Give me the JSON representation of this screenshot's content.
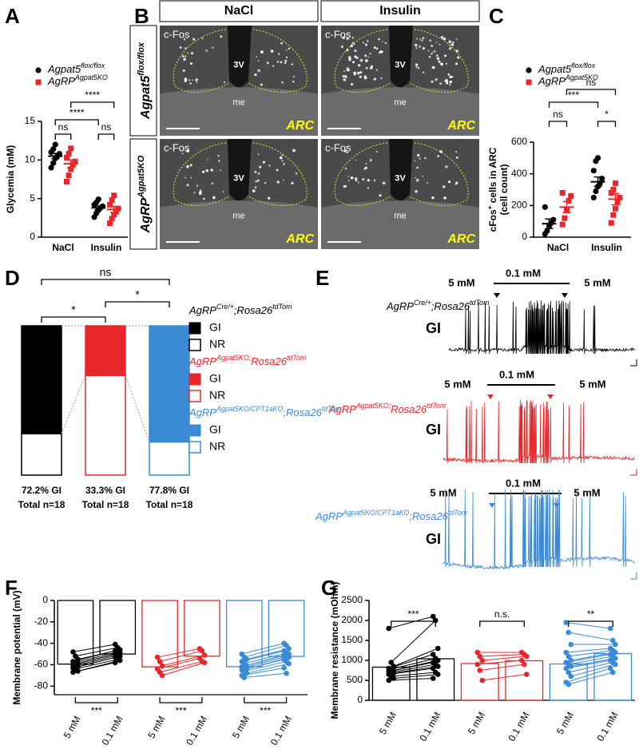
{
  "micrographs": {
    "panel": "B",
    "columns": [
      "NaCl",
      "Insulin"
    ],
    "rows": [
      [
        {
          "t": "Agpat5"
        },
        {
          "sup": "flox/flox"
        }
      ],
      [
        {
          "t": "AgRP"
        },
        {
          "sup": "Agpat5KO"
        }
      ]
    ],
    "images": [
      {
        "stain": "c-Fos",
        "ventricle": "3V",
        "eminence": "me",
        "region": "ARC"
      },
      {
        "stain": "c-Fos",
        "ventricle": "3V",
        "eminence": "me",
        "region": "ARC"
      },
      {
        "stain": "c-Fos",
        "ventricle": "3V",
        "eminence": "me",
        "region": "ARC"
      },
      {
        "stain": "c-Fos",
        "ventricle": "3V",
        "eminence": "me",
        "region": "ARC"
      }
    ]
  },
  "electrophysiology": {
    "panel": "E",
    "traces": [
      {
        "genotype": [
          {
            "t": "AgRP"
          },
          {
            "sup": "Cre/+"
          },
          {
            "t": ";Rosa26"
          },
          {
            "sup": "tdTom"
          }
        ],
        "conditions": [
          "5 mM",
          "0.1 mM",
          "5 mM"
        ],
        "response": "GI",
        "color": "#000000"
      },
      {
        "genotype": [
          {
            "t": "AgRP"
          },
          {
            "sup": "Agpat5KO;"
          },
          {
            "t": "Rosa26"
          },
          {
            "sup": "tdTom"
          }
        ],
        "conditions": [
          "5 mM",
          "0.1 mM",
          "5 mM"
        ],
        "response": "GI",
        "color": "#e8272a"
      },
      {
        "genotype": [
          {
            "t": "AgRP"
          },
          {
            "sup": "Agpat5KO/CPT1aKO"
          },
          {
            "t": ";Rosa26"
          },
          {
            "sup": "tdTom"
          }
        ],
        "conditions": [
          "5 mM",
          "0.1 mM",
          "5 mM"
        ],
        "response": "GI",
        "color": "#3a8ad6"
      }
    ]
  },
  "chart_data": [
    {
      "panel": "A",
      "type": "dot",
      "ylabel": "Glycemia (mM)",
      "categories": [
        "NaCl",
        "Insulin"
      ],
      "ylim": [
        0,
        15
      ],
      "yticks": [
        0,
        5,
        10,
        15
      ],
      "series": [
        {
          "name": [
            {
              "t": "Agpat5"
            },
            {
              "sup": "flox/flox"
            }
          ],
          "color": "#000000",
          "marker": "circle",
          "values": [
            10.5,
            3.8
          ],
          "errors": [
            0.35,
            0.25
          ],
          "points": [
            [
              9.0,
              9.6,
              10.2,
              10.5,
              10.8,
              11.0,
              11.4,
              12.0
            ],
            [
              2.6,
              3.1,
              3.5,
              3.8,
              4.0,
              4.2,
              4.5,
              4.9
            ]
          ]
        },
        {
          "name": [
            {
              "t": "AgRP"
            },
            {
              "sup": "Agpat5KO"
            }
          ],
          "color": "#e8272a",
          "marker": "square",
          "values": [
            9.5,
            3.6
          ],
          "errors": [
            0.5,
            0.4
          ],
          "points": [
            [
              7.2,
              8.0,
              8.8,
              9.4,
              9.8,
              10.3,
              10.8,
              11.5
            ],
            [
              1.8,
              2.4,
              2.9,
              3.3,
              3.7,
              4.2,
              4.8,
              5.4
            ]
          ]
        }
      ],
      "annotations": [
        "ns",
        "ns",
        "****",
        "****"
      ]
    },
    {
      "panel": "C",
      "type": "dot",
      "ylabel": [
        {
          "t": "cFos"
        },
        {
          "sup": "+"
        },
        {
          "t": " cells in ARC"
        }
      ],
      "ylabel_line2": "(cell count)",
      "categories": [
        "NaCl",
        "Insulin"
      ],
      "ylim": [
        0,
        600
      ],
      "yticks": [
        0,
        200,
        400,
        600
      ],
      "series": [
        {
          "name": [
            {
              "t": "Agpat5"
            },
            {
              "sup": "flox/flox"
            }
          ],
          "color": "#000000",
          "marker": "circle",
          "values": [
            85,
            350
          ],
          "errors": [
            30,
            30
          ],
          "points": [
            [
              20,
              40,
              70,
              90,
              110,
              190
            ],
            [
              250,
              290,
              320,
              340,
              370,
              420,
              480,
              500
            ]
          ]
        },
        {
          "name": [
            {
              "t": "AgRP"
            },
            {
              "sup": "Agpat5KO"
            }
          ],
          "color": "#e8272a",
          "marker": "square",
          "values": [
            190,
            240
          ],
          "errors": [
            35,
            35
          ],
          "points": [
            [
              80,
              120,
              170,
              230,
              260,
              280
            ],
            [
              90,
              140,
              180,
              220,
              250,
              280,
              300,
              340
            ]
          ]
        }
      ],
      "annotations": [
        "ns",
        "***",
        "ns",
        "*"
      ]
    },
    {
      "panel": "D",
      "type": "stacked-bar",
      "colors": [
        "#000000",
        "#e8272a",
        "#3a8ad6"
      ],
      "ylim": [
        0,
        100
      ],
      "series": [
        {
          "name": "GI",
          "values": [
            72.2,
            33.3,
            77.8
          ],
          "value_labels": [
            "72.2% GI",
            "33.3% GI",
            "77.8% GI"
          ]
        },
        {
          "name": "NR",
          "values": [
            27.8,
            66.7,
            22.2
          ]
        }
      ],
      "totals": [
        "Total n=18",
        "Total n=18",
        "Total n=18"
      ],
      "annotations": [
        "ns",
        "*",
        "*"
      ],
      "legend": [
        {
          "title": [
            {
              "t": "AgRP"
            },
            {
              "sup": "Cre/+"
            },
            {
              "t": ";Rosa26"
            },
            {
              "sup": "tdTom"
            }
          ]
        },
        {
          "title": [
            {
              "t": "AgRP"
            },
            {
              "sup": "Agpat5KO;"
            },
            {
              "t": "Rosa26"
            },
            {
              "sup": "tdTom"
            }
          ]
        },
        {
          "title": [
            {
              "t": "AgRP"
            },
            {
              "sup": "Agpat5KO/CPT1aKO"
            },
            {
              "t": ";Rosa26"
            },
            {
              "sup": "tdTom"
            }
          ]
        }
      ]
    },
    {
      "panel": "F",
      "type": "paired-bar",
      "ylabel": "Membrane potential (mV)",
      "categories": [
        "5 mM",
        "0.1 mM"
      ],
      "ylim": [
        -88,
        0
      ],
      "yticks": [
        0,
        -20,
        -40,
        -60,
        -80
      ],
      "series": [
        {
          "color": "#000000",
          "values": [
            -59.4,
            -50
          ],
          "points": [
            [
              -48,
              -52,
              -55,
              -57,
              -58,
              -59,
              -60,
              -61,
              -62,
              -63,
              -64,
              -66,
              -67
            ],
            [
              -41,
              -44,
              -46,
              -47,
              -48,
              -49,
              -50,
              -51,
              -52,
              -53,
              -55,
              -56,
              -58
            ]
          ]
        },
        {
          "color": "#e8272a",
          "values": [
            -62,
            -52
          ],
          "points": [
            [
              -53,
              -57,
              -61,
              -64,
              -67,
              -70
            ],
            [
              -45,
              -47,
              -51,
              -54,
              -57,
              -58
            ]
          ]
        },
        {
          "color": "#3a8ad6",
          "values": [
            -61.8,
            -52.2
          ],
          "points": [
            [
              -50,
              -53,
              -55,
              -57,
              -59,
              -61,
              -62,
              -63,
              -64,
              -65,
              -66,
              -68,
              -70,
              -72
            ],
            [
              -40,
              -42,
              -45,
              -47,
              -49,
              -50,
              -51,
              -52,
              -53,
              -55,
              -57,
              -59,
              -63,
              -68
            ]
          ]
        }
      ],
      "annotations": [
        "***",
        "***",
        "***"
      ]
    },
    {
      "panel": "G",
      "type": "paired-bar",
      "ylabel": "Membrane resistance (mOhm)",
      "categories": [
        "5 mM",
        "0.1 mM"
      ],
      "ylim": [
        0,
        2500
      ],
      "yticks": [
        0,
        500,
        1000,
        1500,
        2000,
        2500
      ],
      "series": [
        {
          "color": "#000000",
          "values": [
            830,
            1040
          ],
          "points": [
            [
              1800,
              950,
              850,
              800,
              780,
              750,
              720,
              700,
              680,
              650,
              600,
              550,
              500
            ],
            [
              2100,
              2000,
              1300,
              1150,
              1050,
              1000,
              950,
              900,
              850,
              800,
              700,
              650,
              550
            ]
          ]
        },
        {
          "color": "#e8272a",
          "values": [
            920,
            990
          ],
          "points": [
            [
              1200,
              1100,
              1000,
              900,
              750,
              500
            ],
            [
              1200,
              1150,
              1100,
              1000,
              900,
              650
            ]
          ]
        },
        {
          "color": "#3a8ad6",
          "values": [
            910,
            1170
          ],
          "points": [
            [
              1950,
              1700,
              1400,
              1200,
              1100,
              1000,
              950,
              900,
              850,
              800,
              700,
              600,
              450,
              400
            ],
            [
              1800,
              1500,
              1400,
              1300,
              1250,
              1200,
              1150,
              1100,
              1050,
              1000,
              950,
              900,
              800,
              700
            ]
          ]
        }
      ],
      "annotations": [
        "***",
        "n.s.",
        "**"
      ]
    }
  ]
}
